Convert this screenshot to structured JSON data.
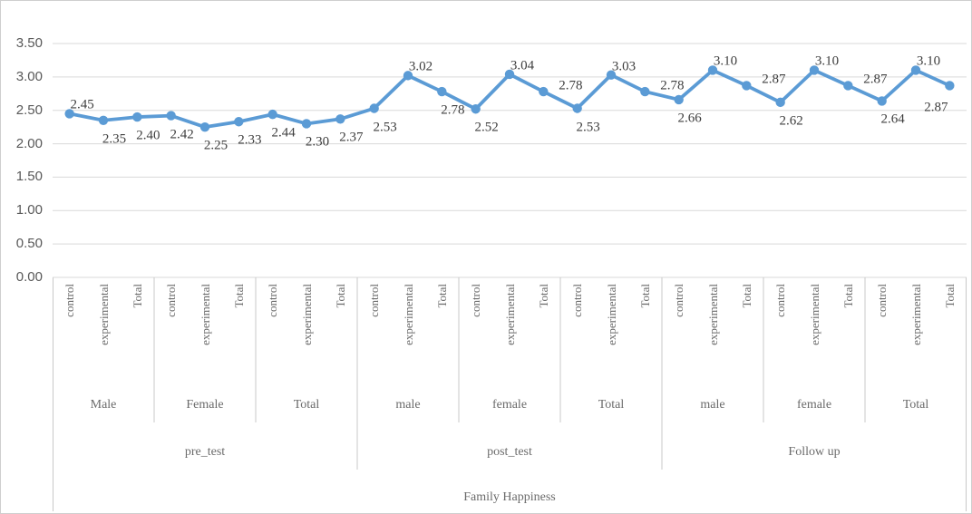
{
  "chart_data": {
    "type": "line",
    "axis_title": "Family Happiness",
    "legend": "none",
    "grid": "horizontal",
    "line_color": "#5B9BD5",
    "gridline_color": "#D9D9D9",
    "axis_table_line_color": "#C9C9C9",
    "y_axis": {
      "min": 0,
      "max": 3.5,
      "step": 0.5,
      "ticks": [
        "3.50",
        "3.00",
        "2.50",
        "2.00",
        "1.50",
        "1.00",
        "0.50",
        "0.00"
      ]
    },
    "sections": [
      {
        "label": "pre_test",
        "groups": [
          {
            "label": "Male",
            "points": [
              {
                "category": "control",
                "value": 2.45,
                "label": "2.45",
                "label_pos": "above"
              },
              {
                "category": "experimental",
                "value": 2.35,
                "label": "2.35",
                "label_pos": "below"
              },
              {
                "category": "Total",
                "value": 2.4,
                "label": "2.40",
                "label_pos": "below"
              }
            ]
          },
          {
            "label": "Female",
            "points": [
              {
                "category": "control",
                "value": 2.42,
                "label": "2.42",
                "label_pos": "below"
              },
              {
                "category": "experimental",
                "value": 2.25,
                "label": "2.25",
                "label_pos": "below"
              },
              {
                "category": "Total",
                "value": 2.33,
                "label": "2.33",
                "label_pos": "below"
              }
            ]
          },
          {
            "label": "Total",
            "points": [
              {
                "category": "control",
                "value": 2.44,
                "label": "2.44",
                "label_pos": "below"
              },
              {
                "category": "experimental",
                "value": 2.3,
                "label": "2.30",
                "label_pos": "below"
              },
              {
                "category": "Total",
                "value": 2.37,
                "label": "2.37",
                "label_pos": "below"
              }
            ]
          }
        ]
      },
      {
        "label": "post_test",
        "groups": [
          {
            "label": "male",
            "points": [
              {
                "category": "control",
                "value": 2.53,
                "label": "2.53",
                "label_pos": "below"
              },
              {
                "category": "experimental",
                "value": 3.02,
                "label": "3.02",
                "label_pos": "above"
              },
              {
                "category": "Total",
                "value": 2.78,
                "label": "2.78",
                "label_pos": "below"
              }
            ]
          },
          {
            "label": "female",
            "points": [
              {
                "category": "control",
                "value": 2.52,
                "label": "2.52",
                "label_pos": "below"
              },
              {
                "category": "experimental",
                "value": 3.04,
                "label": "3.04",
                "label_pos": "above"
              },
              {
                "category": "Total",
                "value": 2.78,
                "label": "2.78",
                "label_pos": "above-right"
              }
            ]
          },
          {
            "label": "Total",
            "points": [
              {
                "category": "control",
                "value": 2.53,
                "label": "2.53",
                "label_pos": "below"
              },
              {
                "category": "experimental",
                "value": 3.03,
                "label": "3.03",
                "label_pos": "above"
              },
              {
                "category": "Total",
                "value": 2.78,
                "label": "2.78",
                "label_pos": "above-right"
              }
            ]
          }
        ]
      },
      {
        "label": "Follow up",
        "groups": [
          {
            "label": "male",
            "points": [
              {
                "category": "control",
                "value": 2.66,
                "label": "2.66",
                "label_pos": "below"
              },
              {
                "category": "experimental",
                "value": 3.1,
                "label": "3.10",
                "label_pos": "above"
              },
              {
                "category": "Total",
                "value": 2.87,
                "label": "2.87",
                "label_pos": "above-right"
              }
            ]
          },
          {
            "label": "female",
            "points": [
              {
                "category": "control",
                "value": 2.62,
                "label": "2.62",
                "label_pos": "below"
              },
              {
                "category": "experimental",
                "value": 3.1,
                "label": "3.10",
                "label_pos": "above"
              },
              {
                "category": "Total",
                "value": 2.87,
                "label": "2.87",
                "label_pos": "above-right"
              }
            ]
          },
          {
            "label": "Total",
            "points": [
              {
                "category": "control",
                "value": 2.64,
                "label": "2.64",
                "label_pos": "below"
              },
              {
                "category": "experimental",
                "value": 3.1,
                "label": "3.10",
                "label_pos": "above"
              },
              {
                "category": "Total",
                "value": 2.87,
                "label": "2.87",
                "label_pos": "below-left"
              }
            ]
          }
        ]
      }
    ]
  }
}
